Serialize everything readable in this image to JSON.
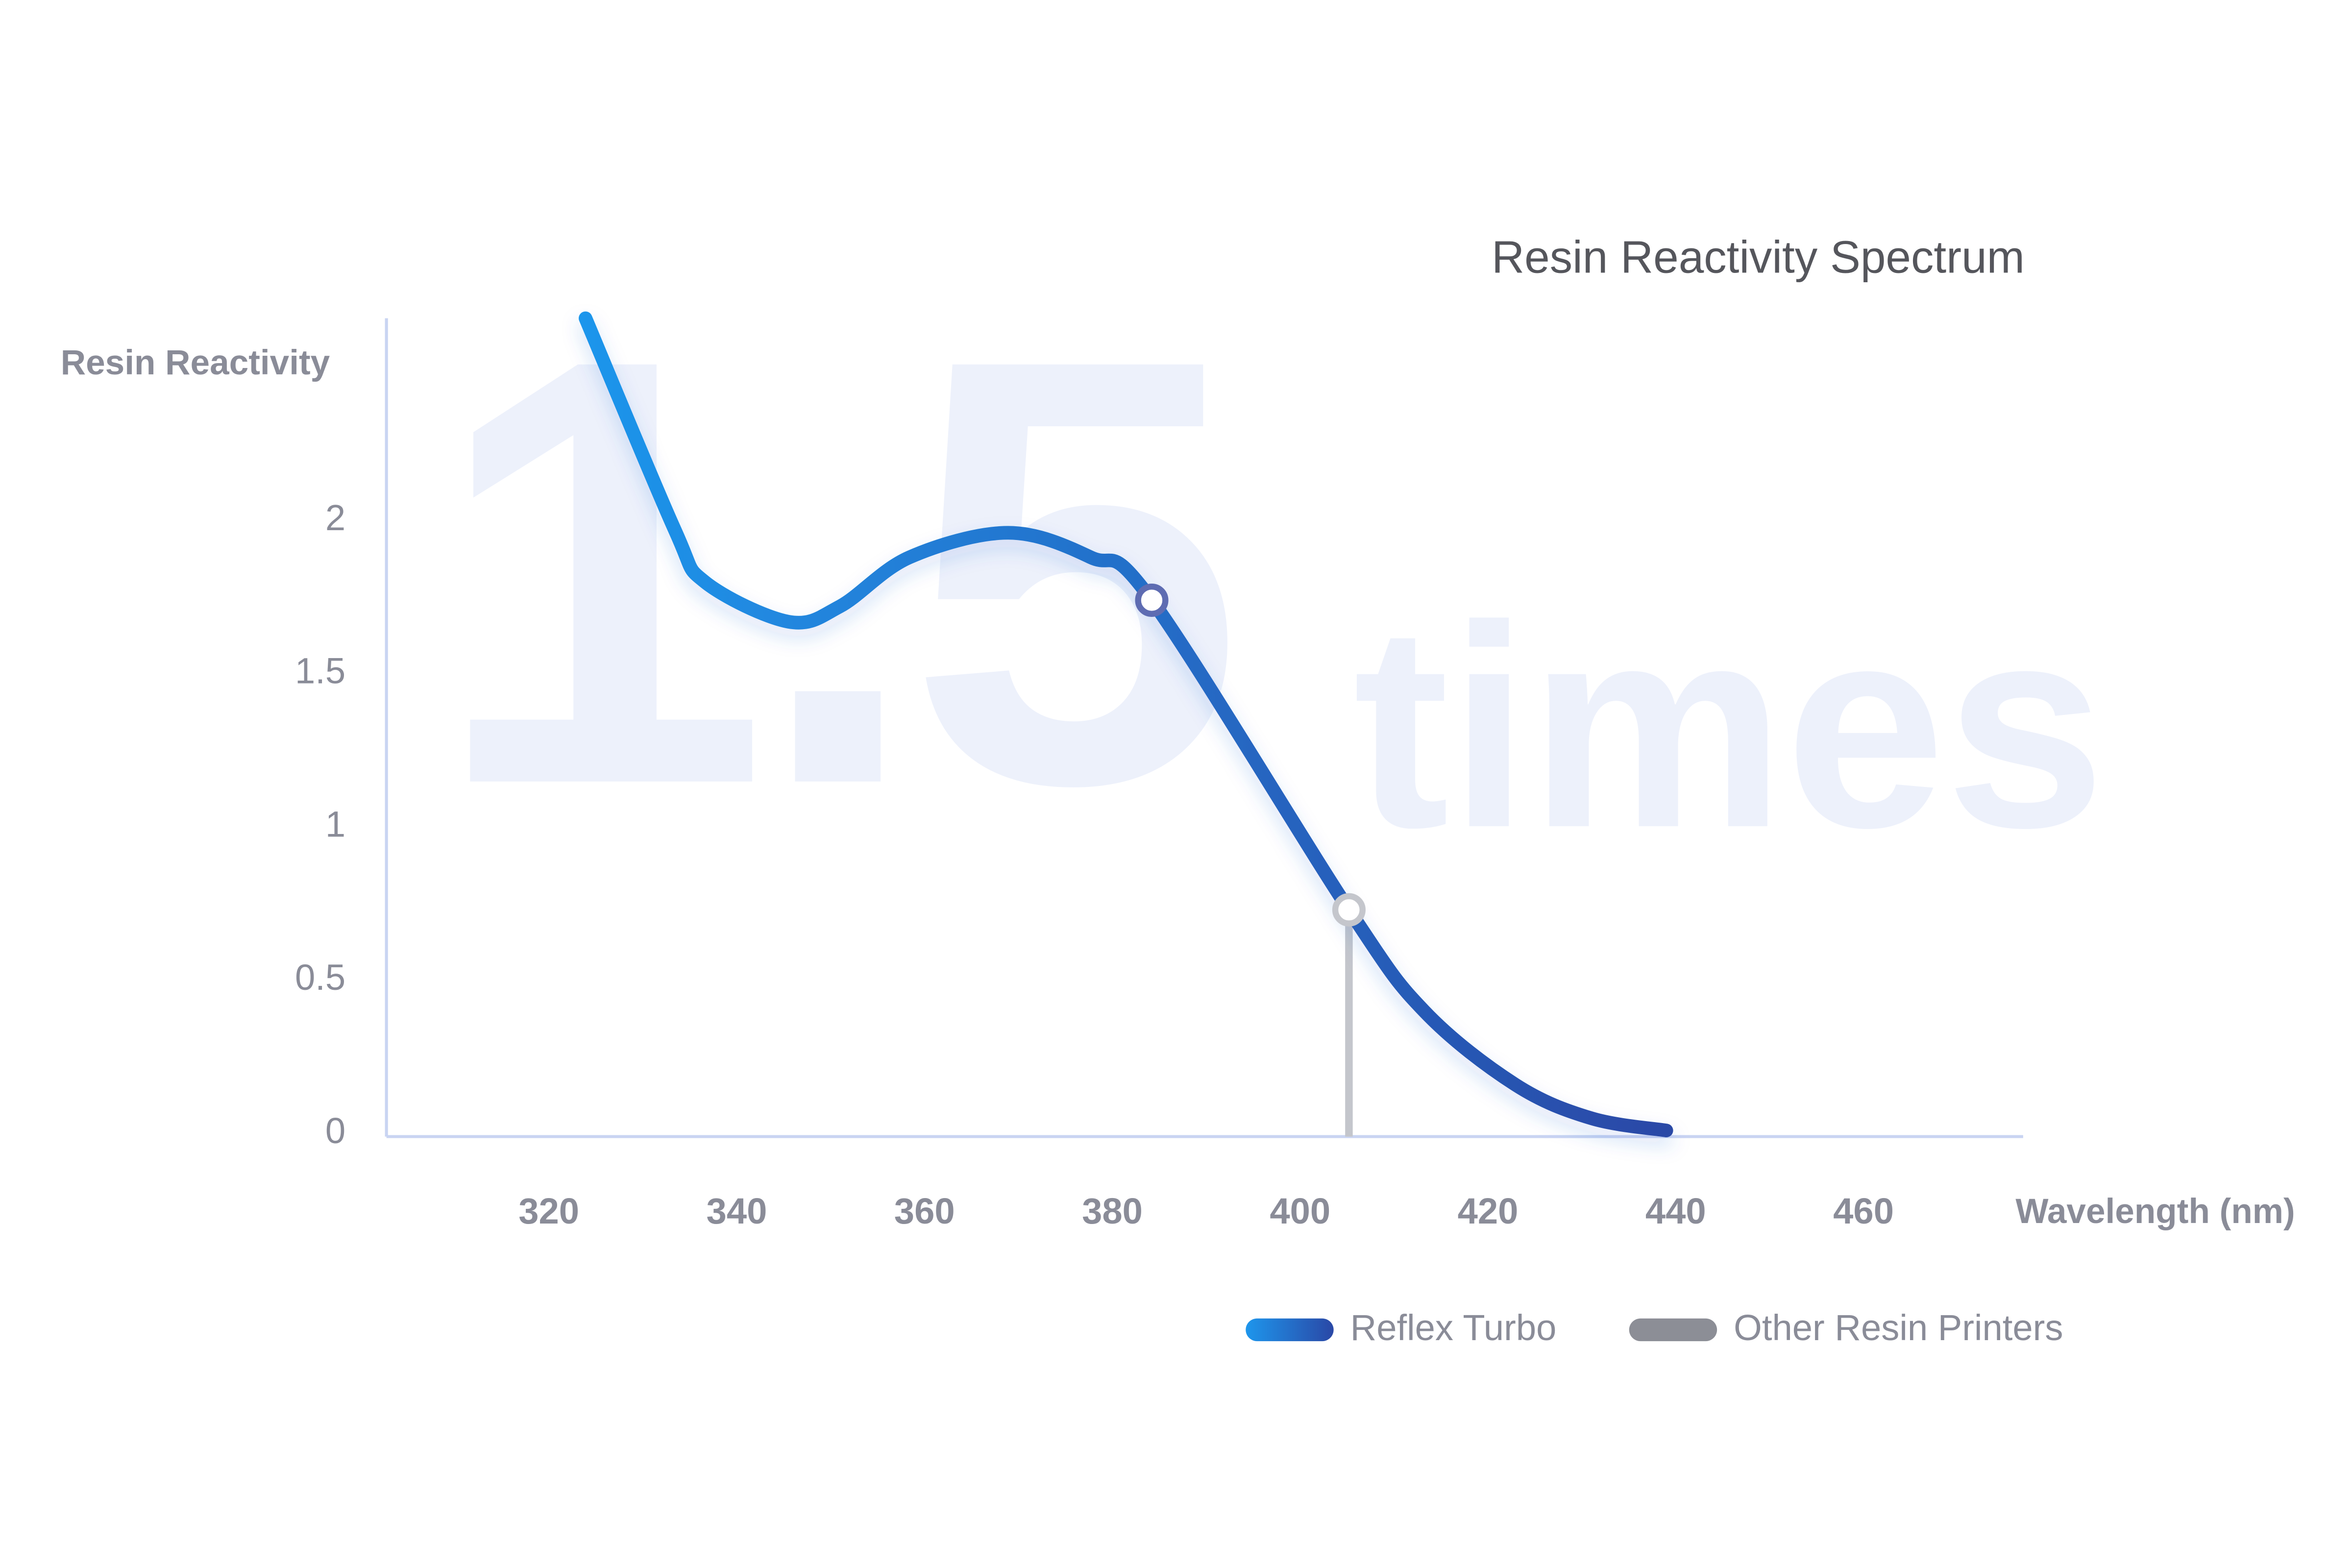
{
  "chart_data": {
    "type": "line",
    "title": "Resin Reactivity Spectrum",
    "watermark": [
      "1.5",
      "times"
    ],
    "y_label": "Resin Reactivity",
    "x_label": "Wavelength (nm)",
    "xlim": [
      302.7,
      477
    ],
    "xticks": [
      320,
      340,
      360,
      380,
      400,
      420,
      440,
      460
    ],
    "ylim": [
      0,
      2.66
    ],
    "yticks": [
      0,
      0.5,
      1,
      1.5,
      2
    ],
    "grid": false,
    "series": [
      {
        "name": "Reflex Turbo",
        "color": [
          "#1e96ec",
          "#2a48a6"
        ],
        "x": [
          323.9,
          333.4,
          336.6,
          345.5,
          351,
          358.4,
          368.9,
          377.7,
          384.2,
          405.2,
          413.2,
          422.9,
          431,
          439
        ],
        "values": [
          2.66,
          1.97,
          1.8,
          1.67,
          1.72,
          1.88,
          1.96,
          1.88,
          1.74,
          0.73,
          0.4,
          0.16,
          0.05,
          0.01
        ],
        "marker": {
          "x": 384.2,
          "value": 1.74
        }
      },
      {
        "name": "Other Resin Printers",
        "color": "#8c8e96",
        "x": [
          405.2
        ],
        "values": [
          0.73
        ]
      }
    ]
  }
}
